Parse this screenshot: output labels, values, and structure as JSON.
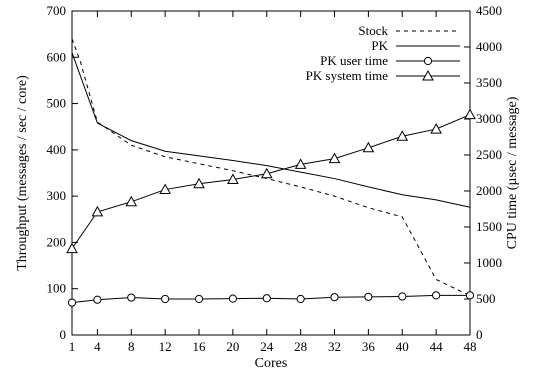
{
  "chart_data": {
    "type": "line",
    "xlabel": "Cores",
    "ylabel_left": "Throughput (messages / sec / core)",
    "ylabel_right": "CPU time (µsec / message)",
    "xlim": [
      1,
      48
    ],
    "ylim_left": [
      0,
      700
    ],
    "ylim_right": [
      0,
      4500
    ],
    "x_ticks": [
      1,
      4,
      8,
      12,
      16,
      20,
      24,
      28,
      32,
      36,
      40,
      44,
      48
    ],
    "y_ticks_left": [
      0,
      100,
      200,
      300,
      400,
      500,
      600,
      700
    ],
    "y_ticks_right": [
      0,
      500,
      1000,
      1500,
      2000,
      2500,
      3000,
      3500,
      4000,
      4500
    ],
    "grid": false,
    "legend_position": "top-right",
    "series": [
      {
        "name": "Stock",
        "axis": "left",
        "style": "dashed",
        "marker": "none",
        "x": [
          1,
          2,
          4,
          8,
          12,
          16,
          20,
          24,
          28,
          32,
          36,
          40,
          44,
          48
        ],
        "values": [
          640,
          590,
          460,
          410,
          385,
          370,
          355,
          338,
          320,
          300,
          275,
          255,
          120,
          85
        ]
      },
      {
        "name": "PK",
        "axis": "left",
        "style": "solid",
        "marker": "none",
        "x": [
          1,
          4,
          8,
          12,
          16,
          20,
          24,
          28,
          32,
          36,
          40,
          44,
          48
        ],
        "values": [
          610,
          458,
          420,
          397,
          387,
          377,
          366,
          352,
          338,
          320,
          303,
          292,
          276
        ]
      },
      {
        "name": "PK user time",
        "axis": "right",
        "style": "solid",
        "marker": "circle",
        "x": [
          1,
          4,
          8,
          12,
          16,
          20,
          24,
          28,
          32,
          36,
          40,
          44,
          48
        ],
        "values": [
          450,
          490,
          520,
          500,
          500,
          505,
          510,
          500,
          525,
          530,
          535,
          550,
          550
        ]
      },
      {
        "name": "PK system time",
        "axis": "right",
        "style": "solid",
        "marker": "triangle",
        "x": [
          1,
          4,
          8,
          12,
          16,
          20,
          24,
          28,
          32,
          36,
          40,
          44,
          48
        ],
        "values": [
          1200,
          1710,
          1850,
          2020,
          2100,
          2160,
          2240,
          2370,
          2450,
          2600,
          2760,
          2860,
          3060
        ]
      }
    ]
  }
}
